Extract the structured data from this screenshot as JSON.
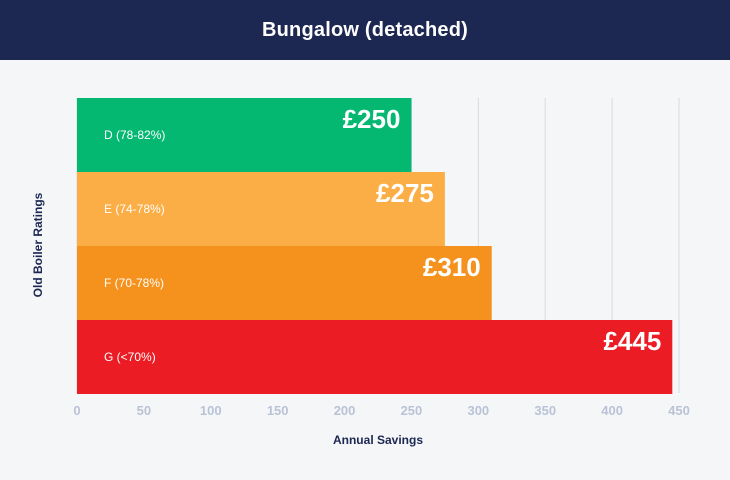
{
  "header": {
    "title": "Bungalow (detached)"
  },
  "colors": {
    "header_bg": "#1c2752",
    "background": "#f5f6f8",
    "grid": "#d6dae3",
    "tick_text": "#b9c3d6",
    "axis_title": "#1c2752"
  },
  "chart_data": {
    "type": "bar",
    "orientation": "horizontal",
    "categories": [
      "D (78-82%)",
      "E (74-78%)",
      "F (70-78%)",
      "G (<70%)"
    ],
    "values": [
      250,
      275,
      310,
      445
    ],
    "data_labels": [
      "£250",
      "£275",
      "£310",
      "£445"
    ],
    "bar_colors": [
      "#04b872",
      "#fbae45",
      "#f5921e",
      "#ec1c24"
    ],
    "xlabel": "Annual Savings",
    "ylabel": "Old Boiler Ratings",
    "xlim": [
      0,
      450
    ],
    "xticks": [
      "0",
      "50",
      "100",
      "150",
      "200",
      "250",
      "300",
      "350",
      "400",
      "450"
    ],
    "grid": true,
    "legend": "none"
  }
}
